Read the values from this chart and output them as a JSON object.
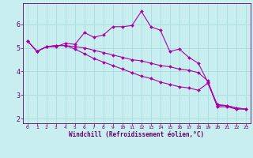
{
  "xlabel": "Windchill (Refroidissement éolien,°C)",
  "bg_color": "#c8eef0",
  "line_color": "#aa00aa",
  "grid_color": "#aadddd",
  "xlim": [
    -0.5,
    23.5
  ],
  "ylim": [
    1.8,
    6.9
  ],
  "yticks": [
    2,
    3,
    4,
    5,
    6
  ],
  "xticks": [
    0,
    1,
    2,
    3,
    4,
    5,
    6,
    7,
    8,
    9,
    10,
    11,
    12,
    13,
    14,
    15,
    16,
    17,
    18,
    19,
    20,
    21,
    22,
    23
  ],
  "series1_x": [
    0,
    1,
    2,
    3,
    4,
    5,
    6,
    7,
    8,
    9,
    10,
    11,
    12,
    13,
    14,
    15,
    16,
    17,
    18,
    19,
    20,
    21,
    22,
    23
  ],
  "series1_y": [
    5.3,
    4.85,
    5.05,
    5.05,
    5.2,
    5.15,
    5.65,
    5.45,
    5.55,
    5.9,
    5.9,
    5.95,
    6.55,
    5.9,
    5.75,
    4.85,
    4.95,
    4.6,
    4.35,
    3.55,
    2.5,
    2.5,
    2.4,
    2.4
  ],
  "series2_x": [
    0,
    1,
    2,
    3,
    4,
    5,
    6,
    7,
    8,
    9,
    10,
    11,
    12,
    13,
    14,
    15,
    16,
    17,
    18,
    19,
    20,
    21,
    22,
    23
  ],
  "series2_y": [
    5.3,
    4.85,
    5.05,
    5.1,
    5.1,
    5.05,
    5.0,
    4.9,
    4.8,
    4.7,
    4.6,
    4.5,
    4.45,
    4.35,
    4.25,
    4.2,
    4.1,
    4.05,
    3.95,
    3.6,
    2.55,
    2.55,
    2.45,
    2.4
  ],
  "series3_x": [
    0,
    1,
    2,
    3,
    4,
    5,
    6,
    7,
    8,
    9,
    10,
    11,
    12,
    13,
    14,
    15,
    16,
    17,
    18,
    19,
    20,
    21,
    22,
    23
  ],
  "series3_y": [
    5.3,
    4.85,
    5.05,
    5.1,
    5.1,
    4.95,
    4.75,
    4.55,
    4.4,
    4.25,
    4.1,
    3.95,
    3.8,
    3.7,
    3.55,
    3.45,
    3.35,
    3.3,
    3.2,
    3.5,
    2.6,
    2.55,
    2.45,
    2.4
  ]
}
